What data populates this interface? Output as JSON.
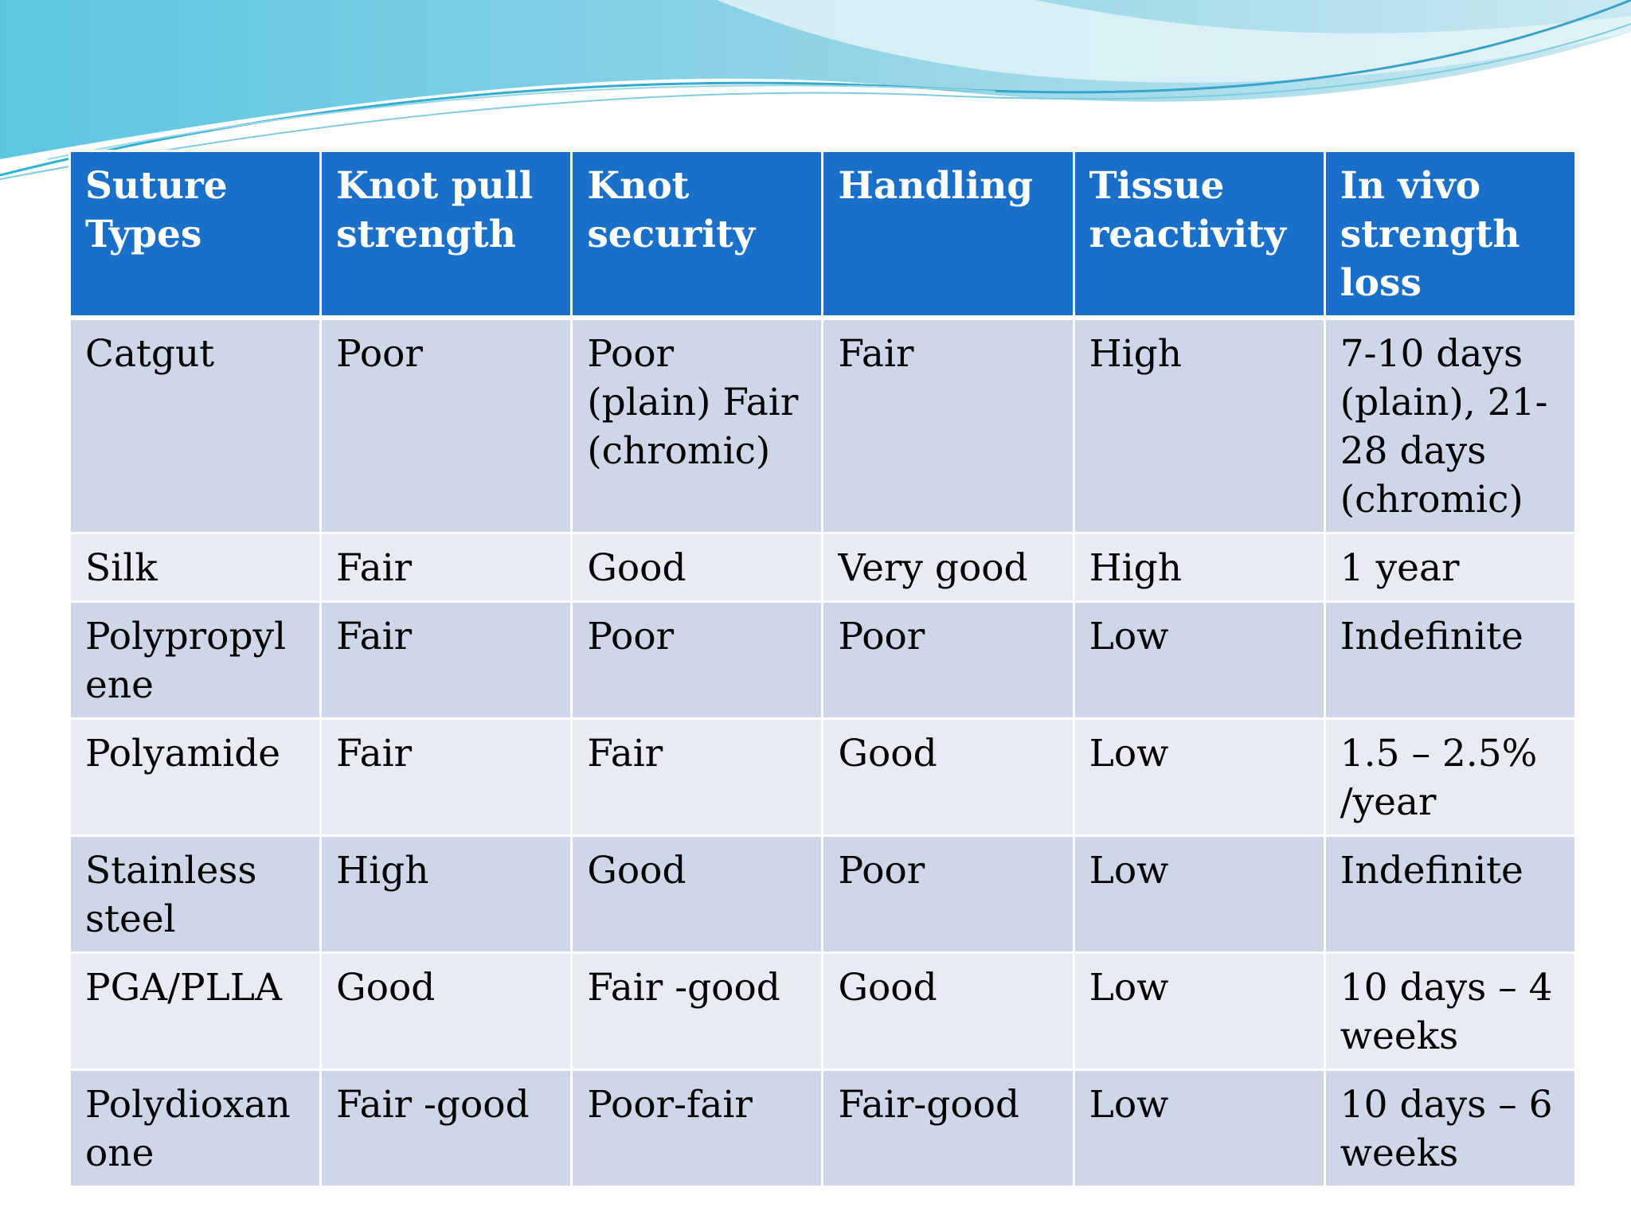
{
  "table": {
    "headers": [
      "Suture Types",
      "Knot pull strength",
      "Knot security",
      "Handling",
      "Tissue reactivity",
      "In vivo strength loss"
    ],
    "rows": [
      [
        "Catgut",
        "Poor",
        "Poor (plain) Fair (chromic)",
        "Fair",
        "High",
        "7-10 days (plain), 21-28 days (chromic)"
      ],
      [
        "Silk",
        "Fair",
        "Good",
        "Very good",
        "High",
        "1 year"
      ],
      [
        "Polypropylene",
        "Fair",
        "Poor",
        "Poor",
        "Low",
        "Indefinite"
      ],
      [
        "Polyamide",
        "Fair",
        "Fair",
        "Good",
        "Low",
        "1.5 – 2.5% /year"
      ],
      [
        "Stainless steel",
        "High",
        "Good",
        "Poor",
        "Low",
        "Indefinite"
      ],
      [
        "PGA/PLLA",
        "Good",
        "Fair -good",
        "Good",
        "Low",
        "10 days – 4 weeks"
      ],
      [
        "Polydioxanone",
        "Fair -good",
        "Poor-fair",
        "Fair-good",
        "Low",
        "10 days – 6 weeks"
      ]
    ]
  },
  "colors": {
    "header_bg": "#1a6fc9",
    "row_odd_bg": "#cfd6e8",
    "row_even_bg": "#e8ebf4",
    "wave_light": "#a8dce6",
    "wave_dark": "#4aa8c8"
  }
}
